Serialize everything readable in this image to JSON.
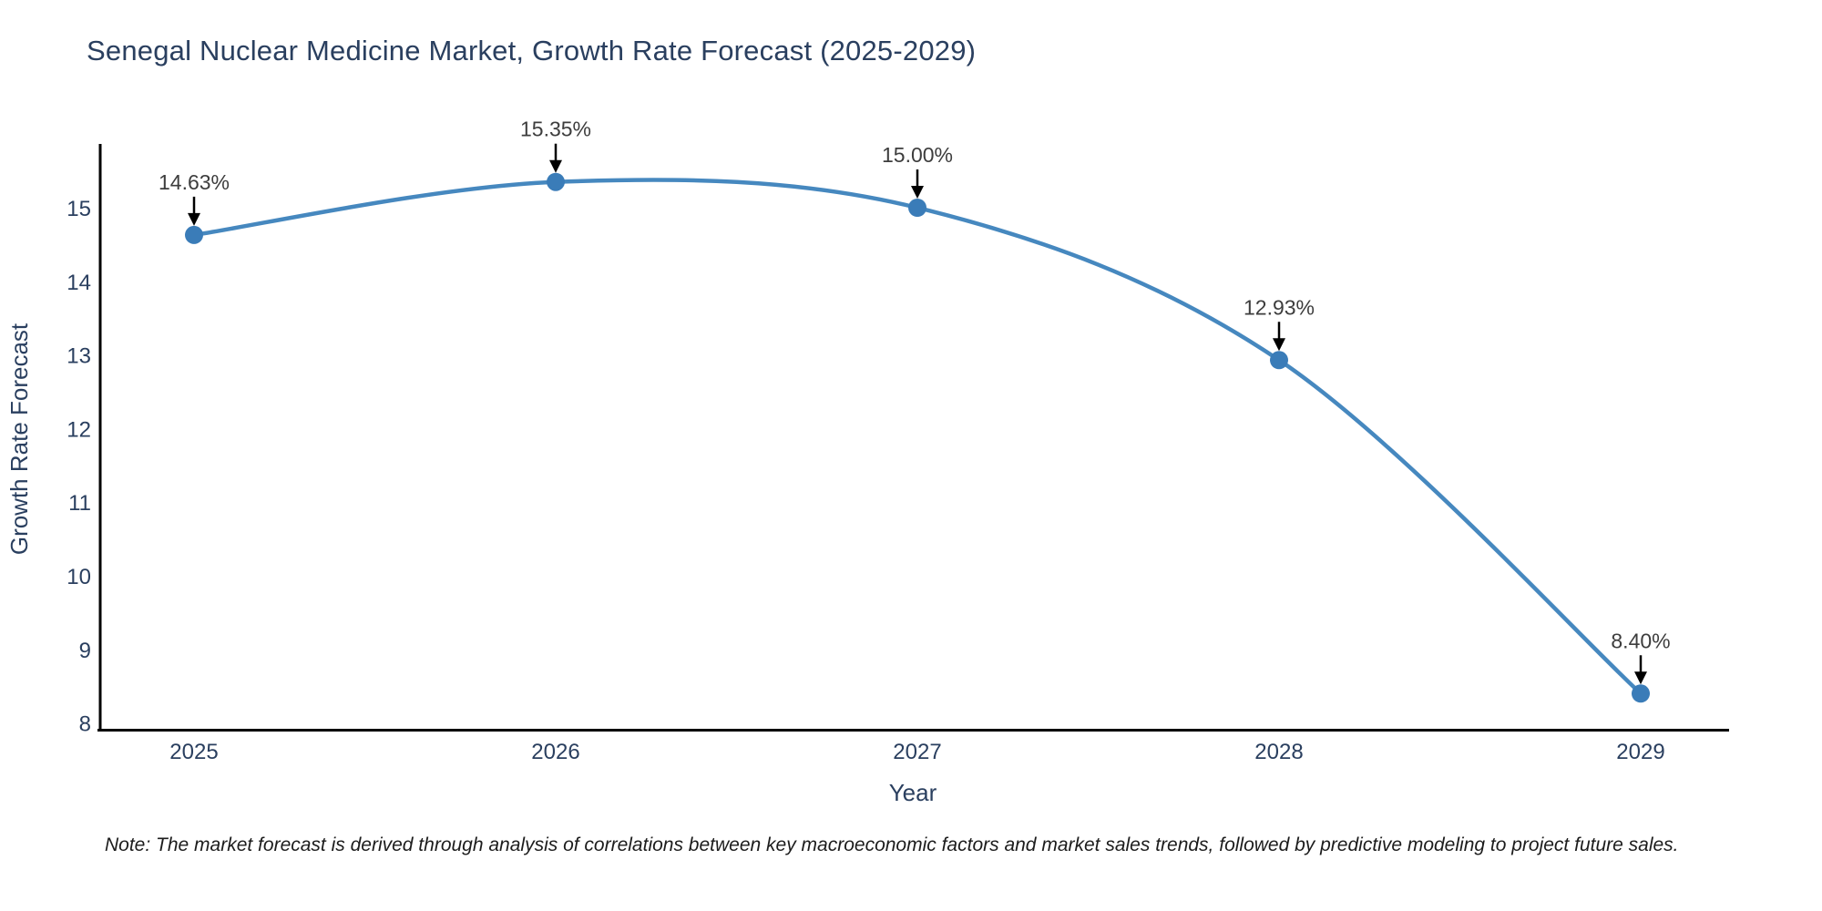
{
  "title": {
    "text": "Senegal Nuclear Medicine Market, Growth Rate Forecast (2025-2029)"
  },
  "chart_data": {
    "type": "line",
    "title": "Senegal Nuclear Medicine Market, Growth Rate Forecast (2025-2029)",
    "x": [
      2025,
      2026,
      2027,
      2028,
      2029
    ],
    "values": [
      14.63,
      15.35,
      15.0,
      12.93,
      8.4
    ],
    "point_labels": [
      "14.63%",
      "15.35%",
      "15.00%",
      "12.93%",
      "8.40%"
    ],
    "xlabel": "Year",
    "ylabel": "Growth Rate Forecast",
    "yticks": [
      8,
      9,
      10,
      11,
      12,
      13,
      14,
      15
    ],
    "ylim": [
      8,
      15.9
    ],
    "grid": false,
    "legend": "none",
    "smooth": true,
    "line_color": "#4688bf",
    "marker_color": "#3a7cb8",
    "axis_color": "#000000",
    "tick_color": "#2a3f5f",
    "annotation_color": "#3d3d3d",
    "background": "#ffffff"
  },
  "note": {
    "text": "Note: The market forecast is derived through analysis of correlations between key macroeconomic factors and market sales trends, followed by predictive modeling to project future sales."
  }
}
